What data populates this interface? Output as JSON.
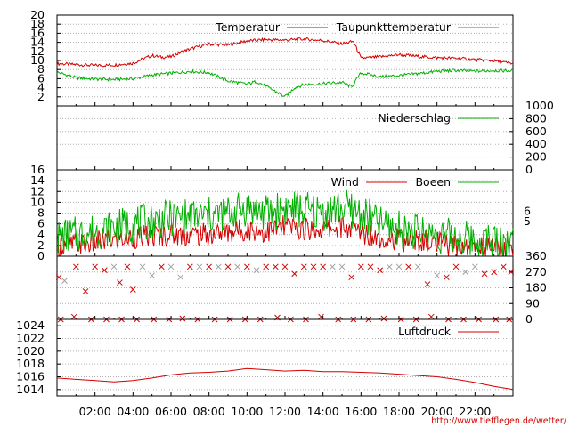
{
  "colors": {
    "red": "#d40000",
    "green": "#00b000",
    "grey": "#a0a0a0"
  },
  "x_ticks": [
    "02:00",
    "04:00",
    "06:00",
    "08:00",
    "10:00",
    "12:00",
    "14:00",
    "16:00",
    "18:00",
    "20:00",
    "22:00"
  ],
  "source_url": "http://www.tiefflegen.de/wetter/",
  "chart_data": [
    {
      "type": "line",
      "panel": "temperature",
      "yticks": [
        2,
        4,
        6,
        8,
        10,
        12,
        14,
        16,
        18,
        20
      ],
      "ylim": [
        0,
        20
      ],
      "legend": [
        "Temperatur",
        "Taupunkttemperatur"
      ],
      "series": [
        {
          "name": "Temperatur",
          "color": "#d40000",
          "x_hours": [
            0,
            1,
            2,
            3,
            4,
            4.5,
            5,
            5.5,
            6,
            6.5,
            7,
            7.5,
            8,
            9,
            10,
            11,
            12,
            13,
            14,
            15,
            15.6,
            16,
            17,
            18,
            19,
            20,
            21,
            22,
            23,
            24
          ],
          "values": [
            9.3,
            9.1,
            8.9,
            9.0,
            9.4,
            10.3,
            11.1,
            10.7,
            10.8,
            11.8,
            12.5,
            13.1,
            13.6,
            13.4,
            14.3,
            14.6,
            14.5,
            14.7,
            14.4,
            13.7,
            14.2,
            10.5,
            10.8,
            11.3,
            10.9,
            10.6,
            10.5,
            10.2,
            9.9,
            9.3
          ]
        },
        {
          "name": "Taupunkttemperatur",
          "color": "#00b000",
          "x_hours": [
            0,
            1,
            2,
            3,
            4,
            5,
            6,
            7,
            8,
            9,
            10,
            10.5,
            11,
            11.5,
            12,
            12.5,
            13,
            14,
            15,
            15.5,
            16,
            17,
            18,
            19,
            20,
            21,
            22,
            23,
            24
          ],
          "values": [
            7.4,
            6.2,
            5.9,
            5.8,
            6.0,
            6.8,
            7.2,
            7.6,
            7.3,
            5.5,
            4.8,
            5.4,
            4.3,
            3.2,
            2.0,
            4.0,
            4.7,
            4.9,
            5.2,
            4.2,
            7.3,
            6.4,
            6.7,
            7.1,
            7.6,
            7.8,
            7.6,
            7.8,
            7.7
          ]
        }
      ]
    },
    {
      "type": "line",
      "panel": "precipitation",
      "yticks": [
        0,
        200,
        400,
        600,
        800,
        1000
      ],
      "ylim": [
        0,
        1000
      ],
      "legend": [
        "Niederschlag"
      ],
      "series": [
        {
          "name": "Niederschlag",
          "color": "#00b000",
          "x_hours": [
            0,
            24
          ],
          "values": [
            0,
            0
          ]
        }
      ]
    },
    {
      "type": "line",
      "panel": "wind",
      "yticks": [
        0,
        2,
        4,
        6,
        8,
        10,
        12,
        14,
        16
      ],
      "ylim": [
        0,
        16
      ],
      "right_ticks": [
        "5",
        "6"
      ],
      "legend": [
        "Wind",
        "Boeen"
      ],
      "series": [
        {
          "name": "Wind",
          "color": "#d40000",
          "x_hours": [
            0,
            2,
            4,
            6,
            8,
            9,
            10,
            11,
            12,
            13,
            14,
            15,
            16,
            17,
            18,
            19,
            20,
            21,
            22,
            23,
            24
          ],
          "values": [
            2,
            2.5,
            3.5,
            4,
            4,
            4.5,
            5,
            4.5,
            5.5,
            5,
            5,
            5.5,
            4.5,
            3.5,
            3,
            2.8,
            2.4,
            2,
            1.8,
            1.8,
            1.5
          ]
        },
        {
          "name": "Boeen",
          "color": "#00b000",
          "x_hours": [
            0,
            2,
            4,
            6,
            8,
            9,
            10,
            11,
            12,
            13,
            14,
            15,
            16,
            17,
            18,
            19,
            20,
            21,
            22,
            23,
            24
          ],
          "values": [
            3.5,
            4.5,
            6,
            7,
            7.5,
            8,
            9,
            8,
            9,
            8.5,
            8,
            9,
            8,
            6,
            5,
            4.5,
            4,
            3.5,
            3,
            3,
            2.5
          ]
        }
      ]
    },
    {
      "type": "scatter",
      "panel": "wind-direction",
      "yticks": [
        0,
        90,
        180,
        270,
        360
      ],
      "ylim": [
        0,
        360
      ],
      "series": [
        {
          "name": "",
          "color": "#d40000",
          "marker": "x",
          "x_hours": [
            0.1,
            0.4,
            1,
            1.5,
            2,
            2.5,
            3,
            3.3,
            3.7,
            4,
            4.5,
            5,
            5.5,
            6,
            6.5,
            7,
            7.5,
            8,
            8.5,
            9,
            9.5,
            10,
            10.5,
            11,
            11.5,
            12,
            12.5,
            13,
            13.5,
            14,
            14.5,
            15,
            15.5,
            16,
            16.5,
            17,
            17.5,
            18,
            18.5,
            19,
            19.5,
            20,
            20.5,
            21,
            21.5,
            22,
            22.5,
            23,
            23.5,
            23.9
          ],
          "values": [
            240,
            220,
            300,
            160,
            300,
            280,
            300,
            210,
            300,
            170,
            300,
            250,
            300,
            300,
            240,
            300,
            300,
            300,
            300,
            300,
            300,
            300,
            280,
            300,
            300,
            300,
            260,
            300,
            300,
            300,
            300,
            300,
            240,
            300,
            300,
            280,
            300,
            300,
            300,
            300,
            200,
            250,
            240,
            300,
            270,
            300,
            260,
            270,
            300,
            270
          ]
        },
        {
          "name": "",
          "color": "#d40000",
          "marker": "x",
          "x_hours": [
            0.2,
            0.9,
            1.8,
            2.6,
            3.4,
            4.2,
            5.1,
            5.9,
            6.6,
            7.4,
            8.3,
            9.1,
            9.9,
            10.7,
            11.6,
            12.3,
            13.1,
            13.9,
            14.8,
            15.6,
            16.4,
            17.2,
            18.1,
            18.9,
            19.7,
            20.6,
            21.4,
            22.2,
            23.1,
            23.8
          ],
          "values": [
            0,
            15,
            0,
            0,
            0,
            0,
            0,
            0,
            5,
            0,
            0,
            0,
            0,
            0,
            10,
            0,
            0,
            15,
            0,
            0,
            0,
            5,
            0,
            0,
            15,
            0,
            0,
            0,
            0,
            0
          ]
        }
      ]
    },
    {
      "type": "line",
      "panel": "pressure",
      "yticks": [
        1014,
        1016,
        1018,
        1020,
        1022,
        1024
      ],
      "ylim": [
        1013,
        1025
      ],
      "legend": [
        "Luftdruck"
      ],
      "series": [
        {
          "name": "Luftdruck",
          "color": "#d40000",
          "x_hours": [
            0,
            1,
            2,
            3,
            4,
            5,
            6,
            7,
            8,
            9,
            10,
            11,
            12,
            13,
            14,
            15,
            16,
            17,
            18,
            19,
            20,
            21,
            22,
            23,
            24
          ],
          "values": [
            1015.8,
            1015.6,
            1015.4,
            1015.2,
            1015.4,
            1015.8,
            1016.3,
            1016.6,
            1016.7,
            1016.9,
            1017.3,
            1017.1,
            1016.9,
            1017.0,
            1016.8,
            1016.8,
            1016.7,
            1016.6,
            1016.4,
            1016.2,
            1016.0,
            1015.6,
            1015.1,
            1014.5,
            1014.0
          ]
        }
      ]
    }
  ]
}
